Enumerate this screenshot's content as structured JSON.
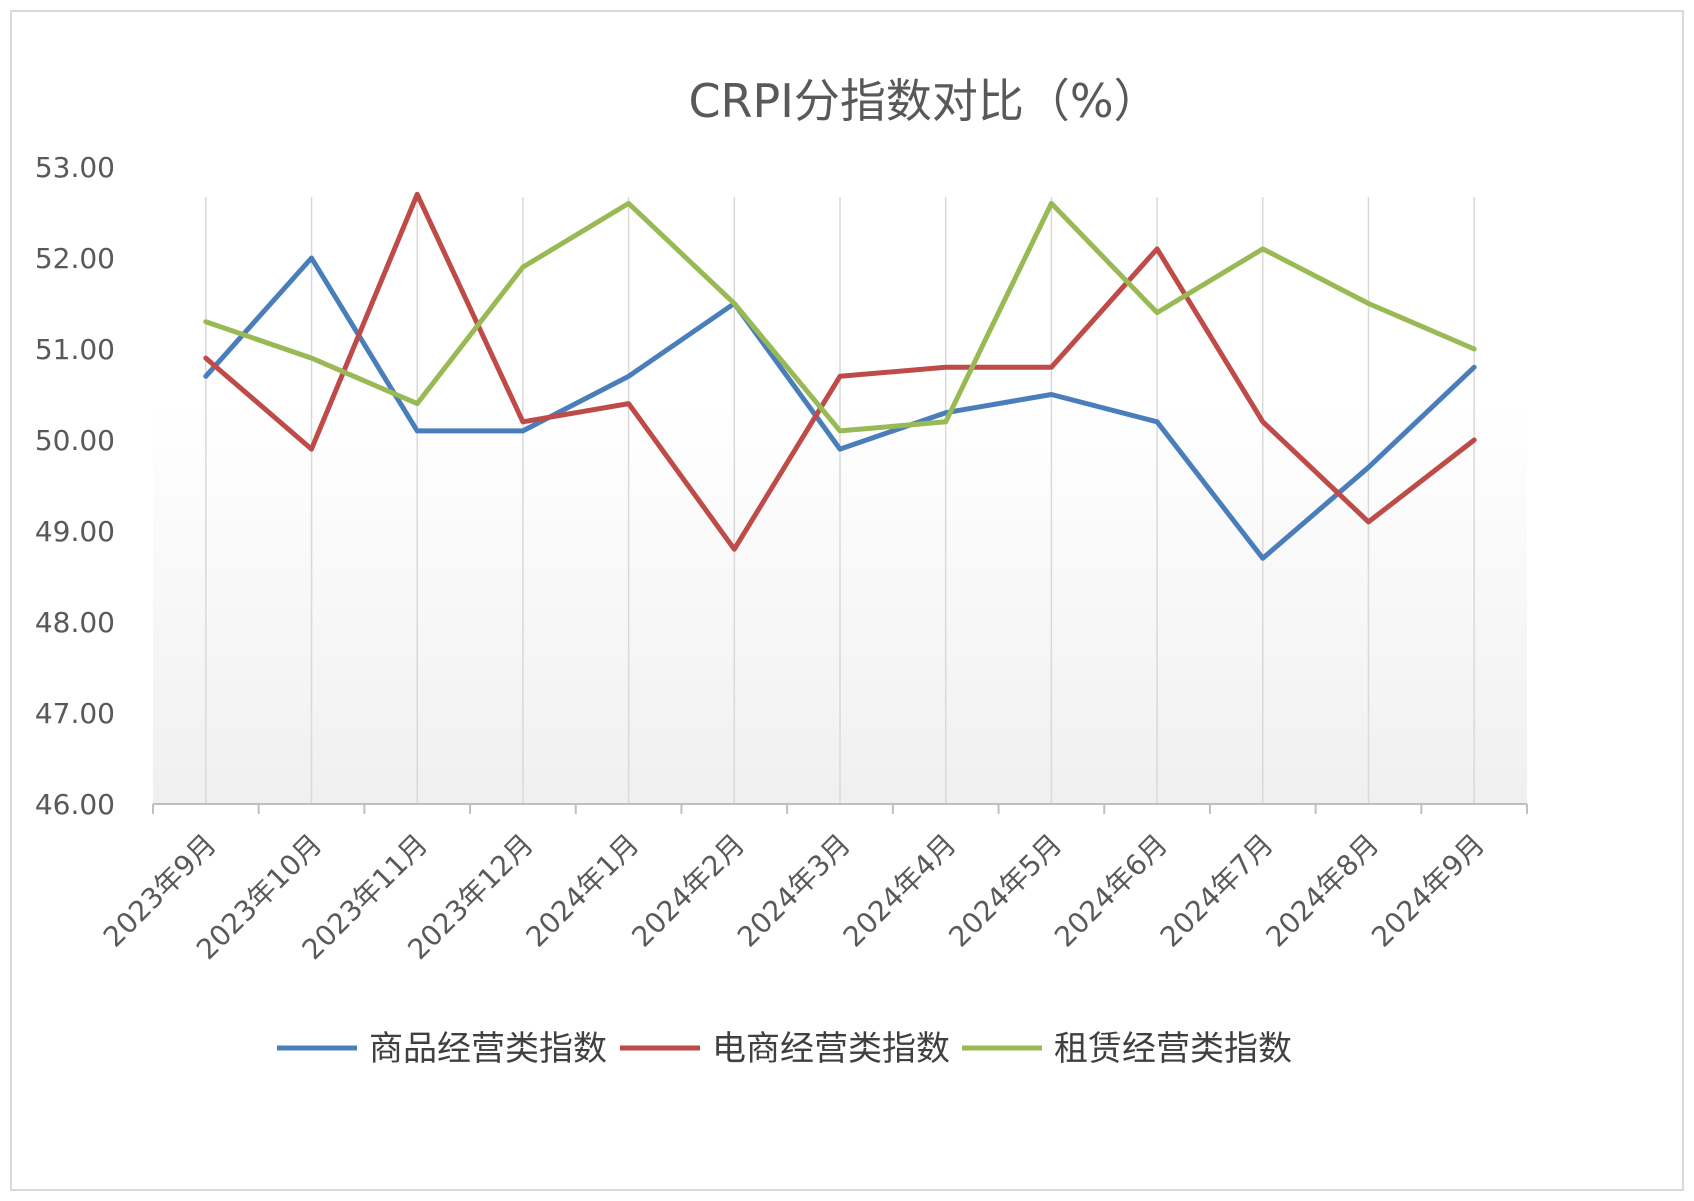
{
  "chart_data": {
    "type": "line",
    "title": "CRPI分指数对比（%）",
    "categories": [
      "2023年9月",
      "2023年10月",
      "2023年11月",
      "2023年12月",
      "2024年1月",
      "2024年2月",
      "2024年3月",
      "2024年4月",
      "2024年5月",
      "2024年6月",
      "2024年7月",
      "2024年8月",
      "2024年9月"
    ],
    "series": [
      {
        "name": "商品经营类指数",
        "color": "#4a7ebb",
        "values": [
          50.7,
          52.0,
          50.1,
          50.1,
          50.7,
          51.5,
          49.9,
          50.3,
          50.5,
          50.2,
          48.7,
          49.7,
          50.8
        ]
      },
      {
        "name": "电商经营类指数",
        "color": "#be4b48",
        "values": [
          50.9,
          49.9,
          52.7,
          50.2,
          50.4,
          48.8,
          50.7,
          50.8,
          50.8,
          52.1,
          50.2,
          49.1,
          50.0
        ]
      },
      {
        "name": "租赁经营类指数",
        "color": "#98b954",
        "values": [
          51.3,
          50.9,
          50.4,
          51.9,
          52.6,
          51.5,
          50.1,
          50.2,
          52.6,
          51.4,
          52.1,
          51.5,
          51.0
        ]
      }
    ],
    "yticks": [
      "46.00",
      "47.00",
      "48.00",
      "49.00",
      "50.00",
      "51.00",
      "52.00",
      "53.00"
    ],
    "ylim": [
      46,
      53
    ],
    "xlabel": "",
    "ylabel": "",
    "grid": "vertical",
    "legend_position": "bottom"
  }
}
